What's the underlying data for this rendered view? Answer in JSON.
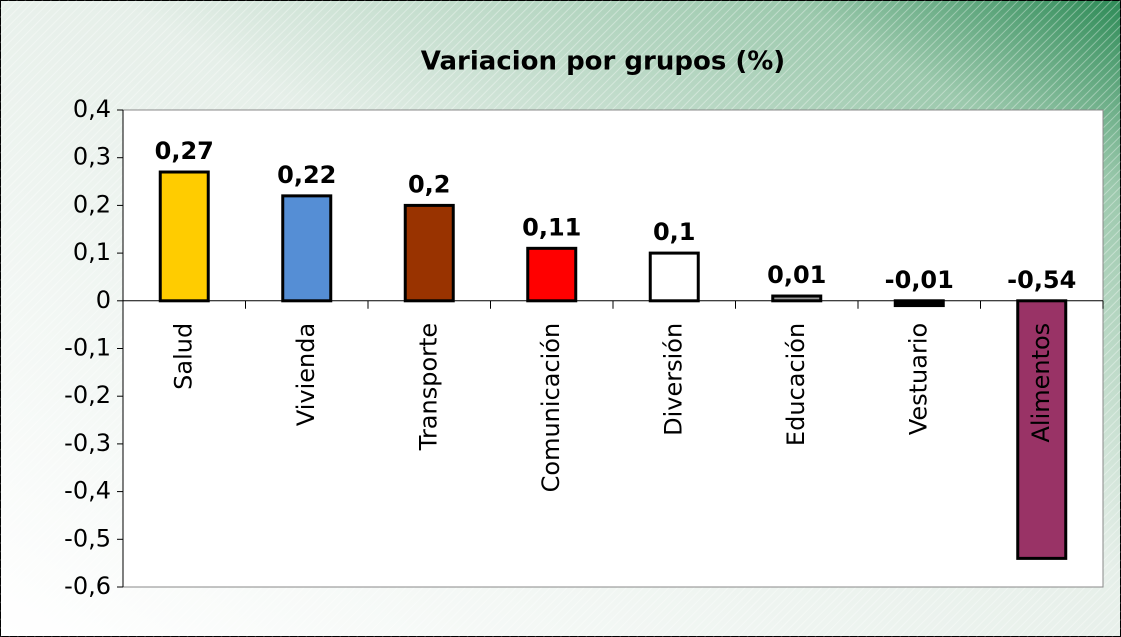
{
  "chart_data": {
    "type": "bar",
    "title": "Variacion por grupos (%)",
    "categories": [
      "Salud",
      "Vivienda",
      "Transporte",
      "Comunicación",
      "Diversión",
      "Educación",
      "Vestuario",
      "Alimentos"
    ],
    "values": [
      0.27,
      0.22,
      0.2,
      0.11,
      0.1,
      0.01,
      -0.01,
      -0.54
    ],
    "value_labels": [
      "0,27",
      "0,22",
      "0,2",
      "0,11",
      "0,1",
      "0,01",
      "-0,01",
      "-0,54"
    ],
    "colors": [
      "#ffcc00",
      "#558ed5",
      "#993300",
      "#ff0000",
      "#ffffff",
      "#999999",
      "#000000",
      "#993366"
    ],
    "ylim": [
      -0.6,
      0.4
    ],
    "yticks": [
      {
        "value": -0.6,
        "label": "-0,6"
      },
      {
        "value": -0.5,
        "label": "-0,5"
      },
      {
        "value": -0.4,
        "label": "-0,4"
      },
      {
        "value": -0.3,
        "label": "-0,3"
      },
      {
        "value": -0.2,
        "label": "-0,2"
      },
      {
        "value": -0.1,
        "label": "-0,1"
      },
      0,
      {
        "value": 0.1,
        "label": "0,1"
      },
      {
        "value": 0.2,
        "label": "0,2"
      },
      {
        "value": 0.3,
        "label": "0,3"
      },
      {
        "value": 0.4,
        "label": "0,4"
      }
    ],
    "grid": false
  }
}
